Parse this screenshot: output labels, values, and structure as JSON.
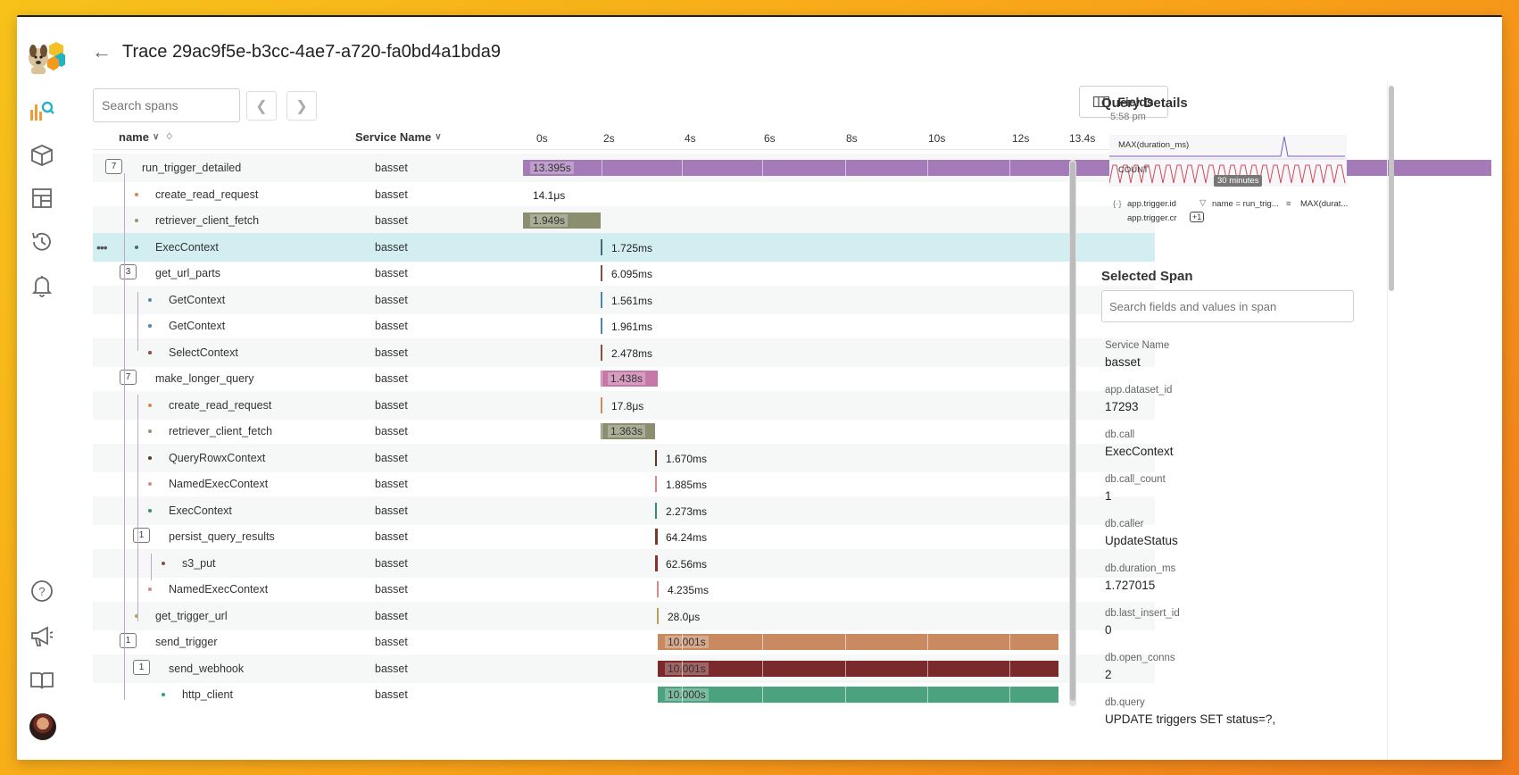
{
  "page": {
    "title": "Trace 29ac9f5e-b3cc-4ae7-a720-fa0bd4a1bda9"
  },
  "toolbar": {
    "search_placeholder": "Search spans",
    "fields_label": "Fields"
  },
  "columns": {
    "name": "name",
    "service": "Service Name"
  },
  "ticks": [
    "0s",
    "2s",
    "4s",
    "6s",
    "8s",
    "10s",
    "12s",
    "13.4s"
  ],
  "spans": [
    {
      "name": "run_trigger_detailed",
      "service": "basset",
      "duration": "13.395s",
      "count": "7"
    },
    {
      "name": "create_read_request",
      "service": "basset",
      "duration": "14.1μs"
    },
    {
      "name": "retriever_client_fetch",
      "service": "basset",
      "duration": "1.949s"
    },
    {
      "name": "ExecContext",
      "service": "basset",
      "duration": "1.725ms"
    },
    {
      "name": "get_url_parts",
      "service": "basset",
      "duration": "6.095ms",
      "count": "3"
    },
    {
      "name": "GetContext",
      "service": "basset",
      "duration": "1.561ms"
    },
    {
      "name": "GetContext",
      "service": "basset",
      "duration": "1.961ms"
    },
    {
      "name": "SelectContext",
      "service": "basset",
      "duration": "2.478ms"
    },
    {
      "name": "make_longer_query",
      "service": "basset",
      "duration": "1.438s",
      "count": "7"
    },
    {
      "name": "create_read_request",
      "service": "basset",
      "duration": "17.8μs"
    },
    {
      "name": "retriever_client_fetch",
      "service": "basset",
      "duration": "1.363s"
    },
    {
      "name": "QueryRowxContext",
      "service": "basset",
      "duration": "1.670ms"
    },
    {
      "name": "NamedExecContext",
      "service": "basset",
      "duration": "1.885ms"
    },
    {
      "name": "ExecContext",
      "service": "basset",
      "duration": "2.273ms"
    },
    {
      "name": "persist_query_results",
      "service": "basset",
      "duration": "64.24ms",
      "count": "1"
    },
    {
      "name": "s3_put",
      "service": "basset",
      "duration": "62.56ms"
    },
    {
      "name": "NamedExecContext",
      "service": "basset",
      "duration": "4.235ms"
    },
    {
      "name": "get_trigger_url",
      "service": "basset",
      "duration": "28.0μs"
    },
    {
      "name": "send_trigger",
      "service": "basset",
      "duration": "10.001s",
      "count": "1"
    },
    {
      "name": "send_webhook",
      "service": "basset",
      "duration": "10.001s",
      "count": "1"
    },
    {
      "name": "http_client",
      "service": "basset",
      "duration": "10.000s"
    }
  ],
  "query": {
    "heading": "Query Details",
    "time": "5:58 pm",
    "series_max": "MAX(duration_ms)",
    "series_count": "COUNT",
    "tooltip": "30 minutes",
    "group_by": "app.trigger.id",
    "group_by2": "app.trigger.cr",
    "more": "+1",
    "filter": "name = run_trig...",
    "order": "MAX(durat..."
  },
  "selected": {
    "heading": "Selected Span",
    "search_placeholder": "Search fields and values in span",
    "attrs": [
      {
        "k": "Service Name",
        "v": "basset"
      },
      {
        "k": "app.dataset_id",
        "v": "17293"
      },
      {
        "k": "db.call",
        "v": "ExecContext"
      },
      {
        "k": "db.call_count",
        "v": "1"
      },
      {
        "k": "db.caller",
        "v": "UpdateStatus"
      },
      {
        "k": "db.duration_ms",
        "v": "1.727015"
      },
      {
        "k": "db.last_insert_id",
        "v": "0"
      },
      {
        "k": "db.open_conns",
        "v": "2"
      },
      {
        "k": "db.query",
        "v": "UPDATE triggers SET status=?,"
      }
    ]
  }
}
